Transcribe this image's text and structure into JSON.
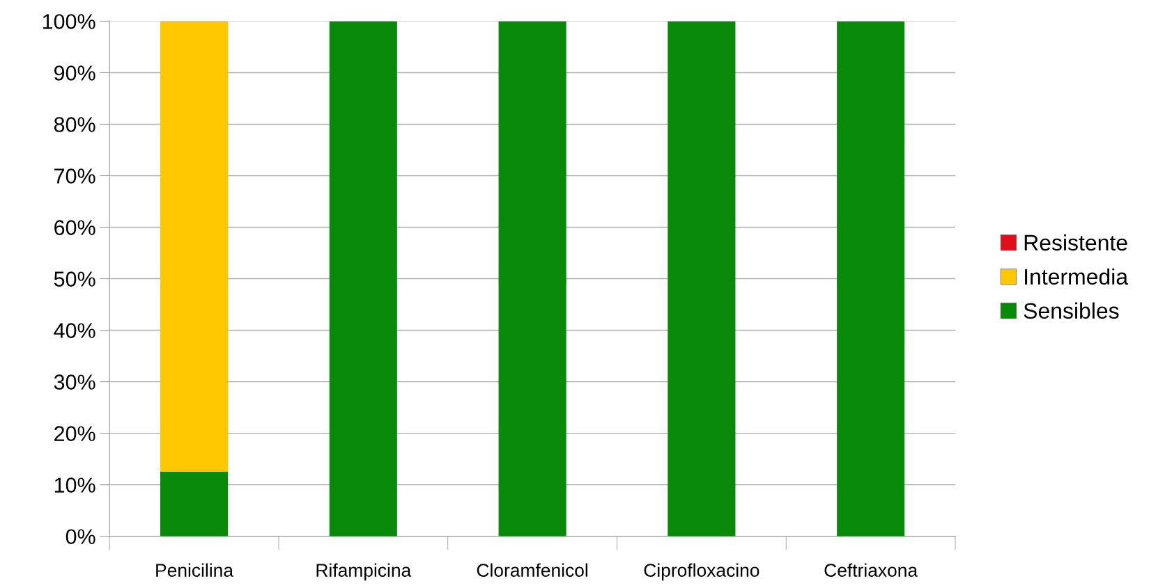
{
  "chart_data": {
    "type": "bar",
    "stacked": true,
    "categories": [
      "Penicilina",
      "Rifampicina",
      "Cloramfenicol",
      "Ciprofloxacino",
      "Ceftriaxona"
    ],
    "series": [
      {
        "name": "Sensibles",
        "color": "#0a8a0a",
        "values": [
          12.5,
          100,
          100,
          100,
          100
        ]
      },
      {
        "name": "Intermedia",
        "color": "#ffc800",
        "values": [
          87.5,
          0,
          0,
          0,
          0
        ]
      },
      {
        "name": "Resistente",
        "color": "#e0101a",
        "values": [
          0,
          0,
          0,
          0,
          0
        ]
      }
    ],
    "ylim": [
      0,
      100
    ],
    "yticks": [
      {
        "value": 0,
        "label": "0%"
      },
      {
        "value": 10,
        "label": "10%"
      },
      {
        "value": 20,
        "label": "20%"
      },
      {
        "value": 30,
        "label": "30%"
      },
      {
        "value": 40,
        "label": "40%"
      },
      {
        "value": 50,
        "label": "50%"
      },
      {
        "value": 60,
        "label": "60%"
      },
      {
        "value": 70,
        "label": "70%"
      },
      {
        "value": 80,
        "label": "80%"
      },
      {
        "value": 90,
        "label": "90%"
      },
      {
        "value": 100,
        "label": "100%"
      }
    ],
    "grid": "y",
    "legend": "right"
  }
}
